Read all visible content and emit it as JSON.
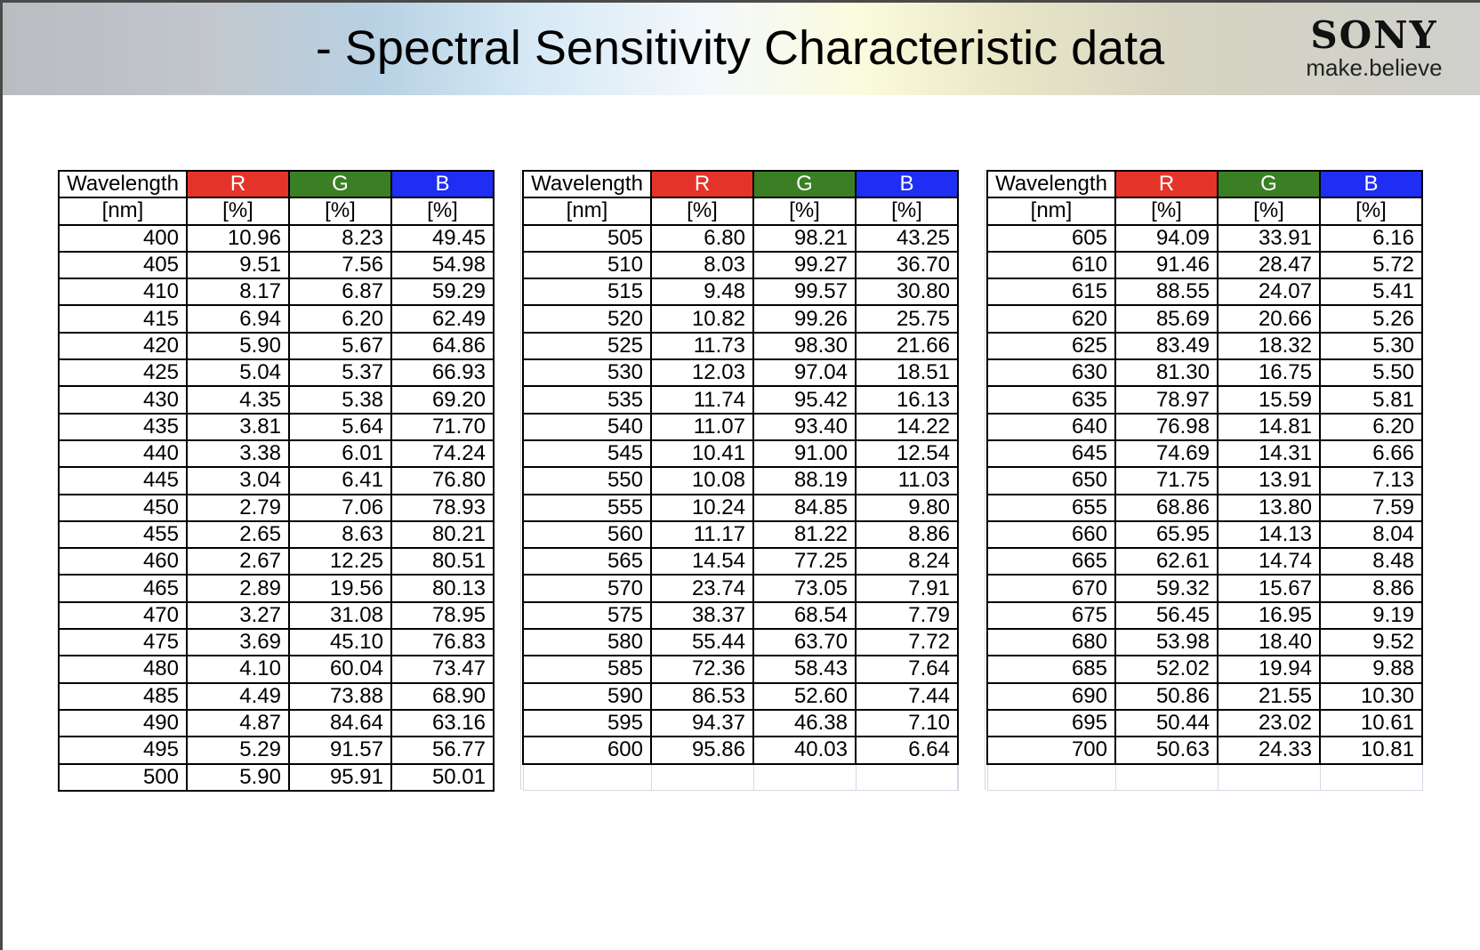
{
  "header": {
    "title": "- Spectral Sensitivity Characteristic data",
    "logo": {
      "brand": "SONY",
      "tagline": "make.believe"
    }
  },
  "colors": {
    "R": "#e4342a",
    "G": "#3b7f25",
    "B": "#1f2ef2"
  },
  "table": {
    "headers": [
      "Wavelength",
      "R",
      "G",
      "B"
    ],
    "units": [
      "[nm]",
      "[%]",
      "[%]",
      "[%]"
    ],
    "blocks": [
      [
        [
          "400",
          "10.96",
          "8.23",
          "49.45"
        ],
        [
          "405",
          "9.51",
          "7.56",
          "54.98"
        ],
        [
          "410",
          "8.17",
          "6.87",
          "59.29"
        ],
        [
          "415",
          "6.94",
          "6.20",
          "62.49"
        ],
        [
          "420",
          "5.90",
          "5.67",
          "64.86"
        ],
        [
          "425",
          "5.04",
          "5.37",
          "66.93"
        ],
        [
          "430",
          "4.35",
          "5.38",
          "69.20"
        ],
        [
          "435",
          "3.81",
          "5.64",
          "71.70"
        ],
        [
          "440",
          "3.38",
          "6.01",
          "74.24"
        ],
        [
          "445",
          "3.04",
          "6.41",
          "76.80"
        ],
        [
          "450",
          "2.79",
          "7.06",
          "78.93"
        ],
        [
          "455",
          "2.65",
          "8.63",
          "80.21"
        ],
        [
          "460",
          "2.67",
          "12.25",
          "80.51"
        ],
        [
          "465",
          "2.89",
          "19.56",
          "80.13"
        ],
        [
          "470",
          "3.27",
          "31.08",
          "78.95"
        ],
        [
          "475",
          "3.69",
          "45.10",
          "76.83"
        ],
        [
          "480",
          "4.10",
          "60.04",
          "73.47"
        ],
        [
          "485",
          "4.49",
          "73.88",
          "68.90"
        ],
        [
          "490",
          "4.87",
          "84.64",
          "63.16"
        ],
        [
          "495",
          "5.29",
          "91.57",
          "56.77"
        ],
        [
          "500",
          "5.90",
          "95.91",
          "50.01"
        ]
      ],
      [
        [
          "505",
          "6.80",
          "98.21",
          "43.25"
        ],
        [
          "510",
          "8.03",
          "99.27",
          "36.70"
        ],
        [
          "515",
          "9.48",
          "99.57",
          "30.80"
        ],
        [
          "520",
          "10.82",
          "99.26",
          "25.75"
        ],
        [
          "525",
          "11.73",
          "98.30",
          "21.66"
        ],
        [
          "530",
          "12.03",
          "97.04",
          "18.51"
        ],
        [
          "535",
          "11.74",
          "95.42",
          "16.13"
        ],
        [
          "540",
          "11.07",
          "93.40",
          "14.22"
        ],
        [
          "545",
          "10.41",
          "91.00",
          "12.54"
        ],
        [
          "550",
          "10.08",
          "88.19",
          "11.03"
        ],
        [
          "555",
          "10.24",
          "84.85",
          "9.80"
        ],
        [
          "560",
          "11.17",
          "81.22",
          "8.86"
        ],
        [
          "565",
          "14.54",
          "77.25",
          "8.24"
        ],
        [
          "570",
          "23.74",
          "73.05",
          "7.91"
        ],
        [
          "575",
          "38.37",
          "68.54",
          "7.79"
        ],
        [
          "580",
          "55.44",
          "63.70",
          "7.72"
        ],
        [
          "585",
          "72.36",
          "58.43",
          "7.64"
        ],
        [
          "590",
          "86.53",
          "52.60",
          "7.44"
        ],
        [
          "595",
          "94.37",
          "46.38",
          "7.10"
        ],
        [
          "600",
          "95.86",
          "40.03",
          "6.64"
        ]
      ],
      [
        [
          "605",
          "94.09",
          "33.91",
          "6.16"
        ],
        [
          "610",
          "91.46",
          "28.47",
          "5.72"
        ],
        [
          "615",
          "88.55",
          "24.07",
          "5.41"
        ],
        [
          "620",
          "85.69",
          "20.66",
          "5.26"
        ],
        [
          "625",
          "83.49",
          "18.32",
          "5.30"
        ],
        [
          "630",
          "81.30",
          "16.75",
          "5.50"
        ],
        [
          "635",
          "78.97",
          "15.59",
          "5.81"
        ],
        [
          "640",
          "76.98",
          "14.81",
          "6.20"
        ],
        [
          "645",
          "74.69",
          "14.31",
          "6.66"
        ],
        [
          "650",
          "71.75",
          "13.91",
          "7.13"
        ],
        [
          "655",
          "68.86",
          "13.80",
          "7.59"
        ],
        [
          "660",
          "65.95",
          "14.13",
          "8.04"
        ],
        [
          "665",
          "62.61",
          "14.74",
          "8.48"
        ],
        [
          "670",
          "59.32",
          "15.67",
          "8.86"
        ],
        [
          "675",
          "56.45",
          "16.95",
          "9.19"
        ],
        [
          "680",
          "53.98",
          "18.40",
          "9.52"
        ],
        [
          "685",
          "52.02",
          "19.94",
          "9.88"
        ],
        [
          "690",
          "50.86",
          "21.55",
          "10.30"
        ],
        [
          "695",
          "50.44",
          "23.02",
          "10.61"
        ],
        [
          "700",
          "50.63",
          "24.33",
          "10.81"
        ]
      ]
    ]
  }
}
